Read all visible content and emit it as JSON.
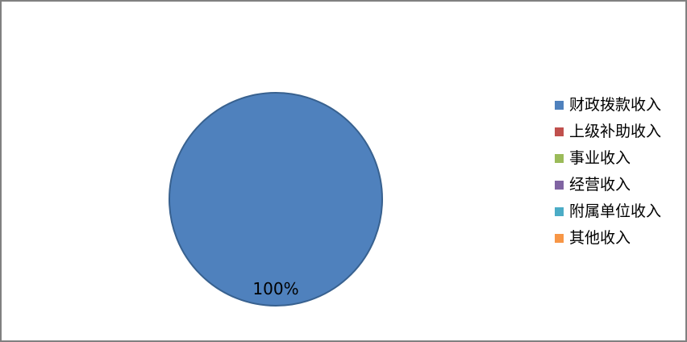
{
  "chart_data": {
    "type": "pie",
    "title": "",
    "slices": [
      {
        "label": "财政拨款收入",
        "value": 100,
        "color": "#4F81BD"
      },
      {
        "label": "上级补助收入",
        "value": 0,
        "color": "#C0504D"
      },
      {
        "label": "事业收入",
        "value": 0,
        "color": "#9BBB59"
      },
      {
        "label": "经营收入",
        "value": 0,
        "color": "#8064A2"
      },
      {
        "label": "附属单位收入",
        "value": 0,
        "color": "#4BACC6"
      },
      {
        "label": "其他收入",
        "value": 0,
        "color": "#F79646"
      }
    ],
    "data_labels": [
      "100%"
    ],
    "legend_position": "right",
    "pie_border_color": "#38618F",
    "frame_border_color": "#808080",
    "background": "#FFFFFF"
  }
}
